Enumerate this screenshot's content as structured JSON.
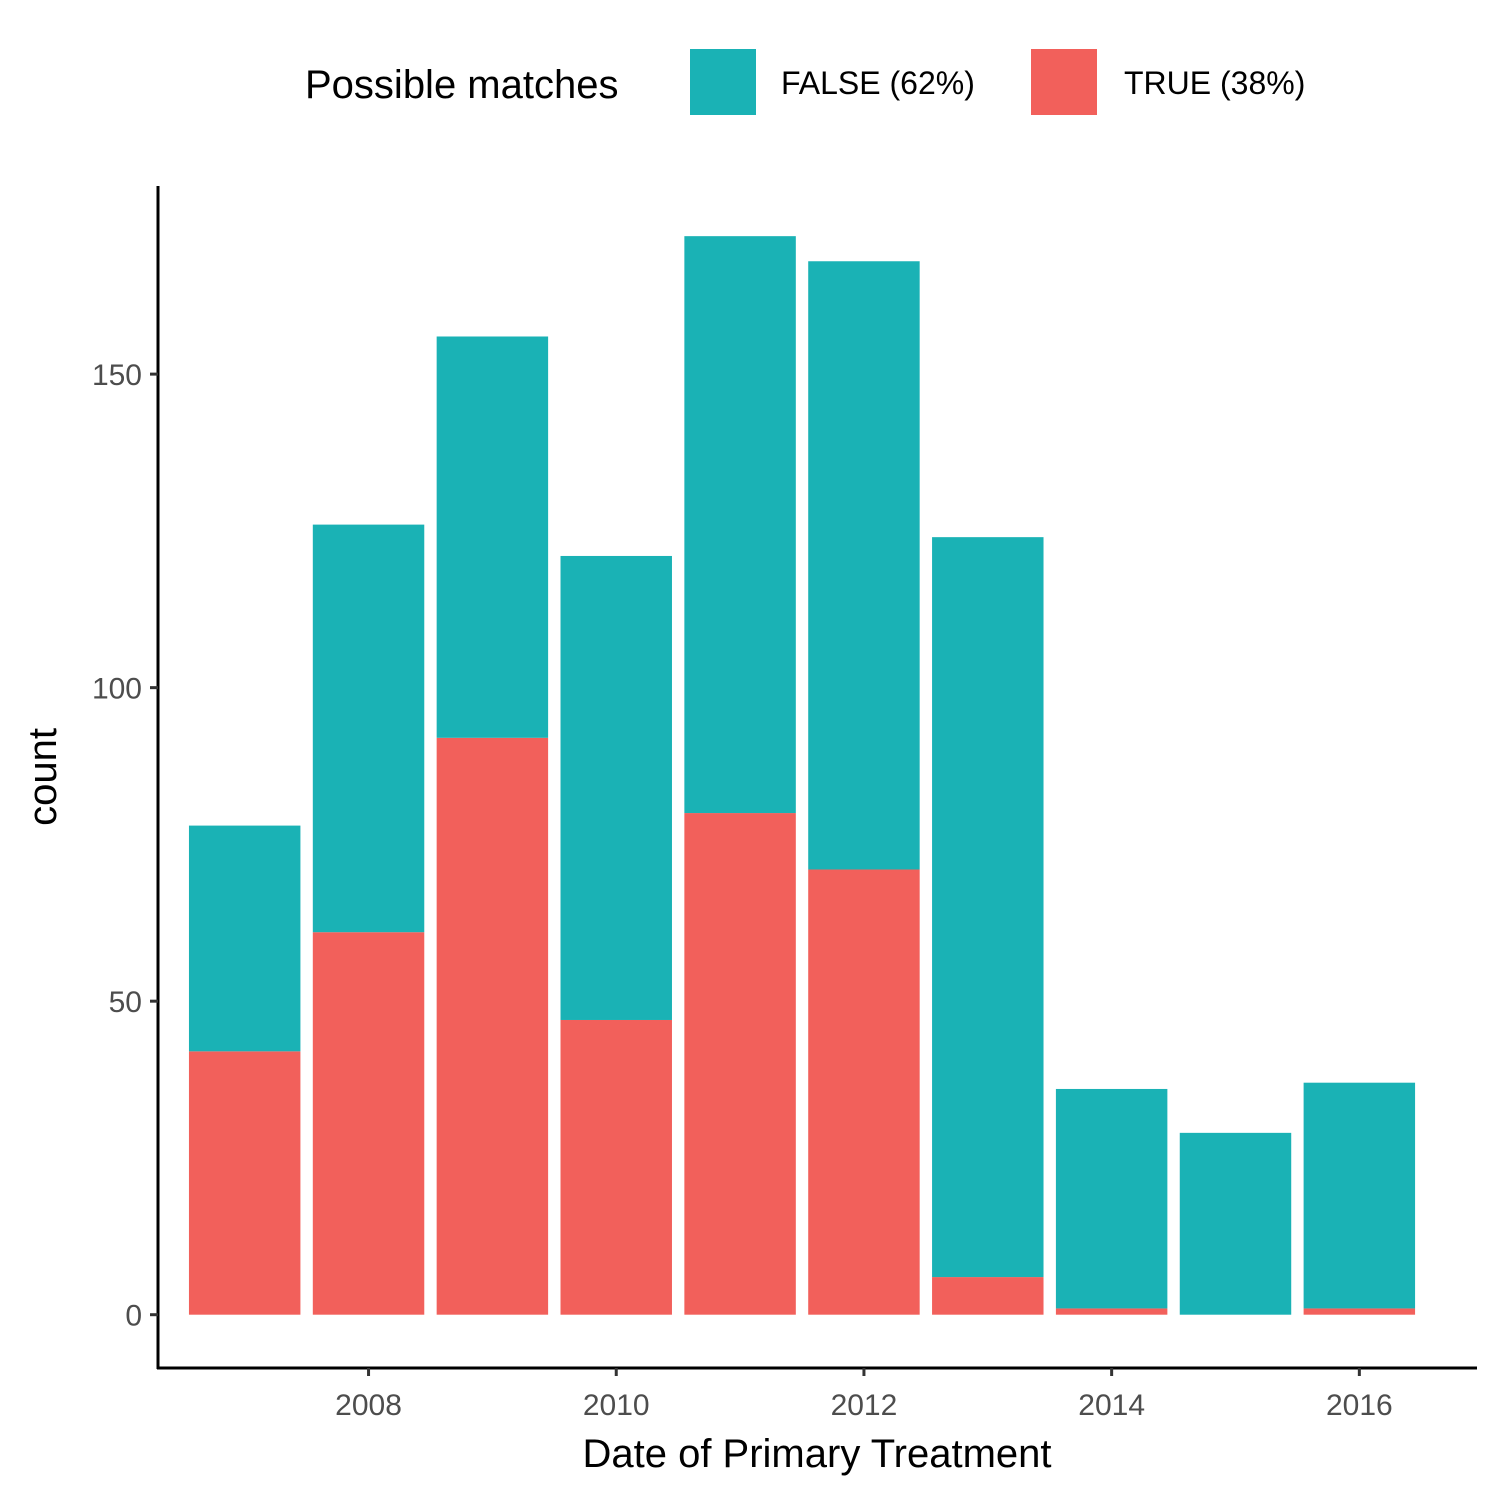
{
  "chart_data": {
    "type": "bar",
    "stacked": true,
    "title": "",
    "xlabel": "Date of Primary Treatment",
    "ylabel": "count",
    "categories": [
      2007,
      2008,
      2009,
      2010,
      2011,
      2012,
      2013,
      2014,
      2015,
      2016
    ],
    "x_ticks": [
      2008,
      2010,
      2012,
      2014,
      2016
    ],
    "y_ticks": [
      0,
      50,
      100,
      150
    ],
    "xlim": [
      2006.3,
      2016.95
    ],
    "ylim": [
      -8.5,
      180
    ],
    "legend": {
      "title": "Possible matches",
      "position": "top",
      "entries": [
        {
          "label": "FALSE (62%)",
          "color": "#1AB2B5"
        },
        {
          "label": "TRUE (38%)",
          "color": "#F2605B"
        }
      ]
    },
    "series": [
      {
        "key": "true",
        "values": [
          42,
          61,
          92,
          47,
          80,
          71,
          6,
          1,
          0,
          1
        ],
        "color": "#F2605B"
      },
      {
        "key": "false",
        "values": [
          36,
          65,
          64,
          74,
          92,
          97,
          118,
          35,
          29,
          36
        ],
        "color": "#1AB2B5"
      }
    ],
    "totals": [
      78,
      126,
      156,
      121,
      172,
      168,
      124,
      36,
      29,
      37
    ],
    "grid": false
  }
}
